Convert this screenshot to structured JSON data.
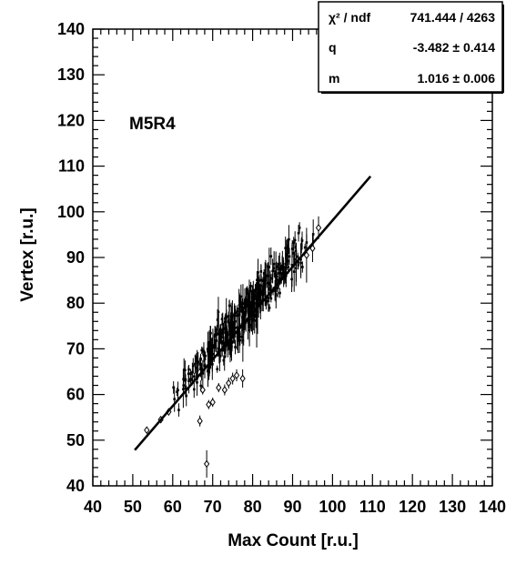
{
  "chart_data": {
    "type": "scatter",
    "annotation": "M5R4",
    "xlabel": "Max Count [r.u.]",
    "ylabel": "Vertex [r.u.]",
    "xlim": [
      40,
      140
    ],
    "ylim": [
      40,
      140
    ],
    "x_ticks": [
      40,
      50,
      60,
      70,
      80,
      90,
      100,
      110,
      120,
      130,
      140
    ],
    "y_ticks": [
      40,
      50,
      60,
      70,
      80,
      90,
      100,
      110,
      120,
      130,
      140
    ],
    "stats_box": {
      "rows": [
        {
          "label": "χ² / ndf",
          "value": "741.444 / 4263"
        },
        {
          "label": "q",
          "value": "-3.482 ± 0.414"
        },
        {
          "label": "m",
          "value": "1.016 ± 0.006"
        }
      ]
    },
    "fit_line": {
      "q": -3.482,
      "m": 1.016,
      "x_range": [
        50.5,
        109.5
      ]
    },
    "band": {
      "x_range": [
        59,
        96
      ],
      "count": 420,
      "spread": 4.5,
      "err_min": 0.8,
      "err_max": 5.5
    },
    "outliers": [
      {
        "x": 53.5,
        "y": 52.2,
        "err": 0.6
      },
      {
        "x": 57,
        "y": 54.5,
        "err": 0.6
      },
      {
        "x": 59,
        "y": 56.2,
        "err": 0.8
      },
      {
        "x": 66.8,
        "y": 54.2,
        "err": 1.2
      },
      {
        "x": 68.5,
        "y": 44.8,
        "err": 3.0
      },
      {
        "x": 69,
        "y": 57.8,
        "err": 1.0
      },
      {
        "x": 70,
        "y": 58.3,
        "err": 1.0
      },
      {
        "x": 67.5,
        "y": 61.0,
        "err": 1.0
      },
      {
        "x": 71.5,
        "y": 61.5,
        "err": 1.0
      },
      {
        "x": 73,
        "y": 61.0,
        "err": 1.2
      },
      {
        "x": 74,
        "y": 62.5,
        "err": 1.2
      },
      {
        "x": 75,
        "y": 63.5,
        "err": 1.3
      },
      {
        "x": 76,
        "y": 64.2,
        "err": 1.3
      },
      {
        "x": 77.5,
        "y": 63.5,
        "err": 2.0
      },
      {
        "x": 93.5,
        "y": 90.5,
        "err": 6.0
      },
      {
        "x": 95,
        "y": 92.0,
        "err": 3.0
      },
      {
        "x": 96.5,
        "y": 96.5,
        "err": 2.5
      }
    ]
  }
}
